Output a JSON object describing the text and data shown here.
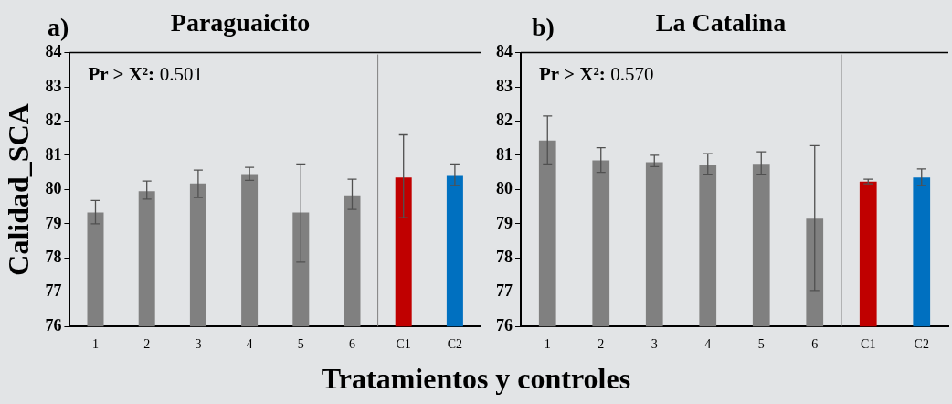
{
  "chart_data": [
    {
      "type": "bar",
      "title": "Paraguaicito",
      "ylabel": "Calidad_SCA",
      "xlabel": "Tratamientos y controles",
      "annotations": [
        "a)",
        "Pr > X²: 0.501"
      ],
      "categories": [
        "1",
        "2",
        "3",
        "4",
        "5",
        "6",
        "C1",
        "C2"
      ],
      "values": [
        79.33,
        79.95,
        80.18,
        80.45,
        79.33,
        79.83,
        80.35,
        80.4
      ],
      "colors": [
        "#808080",
        "#808080",
        "#808080",
        "#808080",
        "#808080",
        "#808080",
        "#c00000",
        "#0070c0"
      ],
      "errors": [
        [
          79.0,
          79.68
        ],
        [
          79.72,
          80.25
        ],
        [
          79.77,
          80.57
        ],
        [
          80.27,
          80.65
        ],
        [
          77.88,
          80.75
        ],
        [
          79.42,
          80.3
        ],
        [
          79.18,
          81.6
        ],
        [
          80.12,
          80.75
        ]
      ],
      "ylim": [
        76,
        84
      ],
      "yticks": [
        76,
        77,
        78,
        79,
        80,
        81,
        82,
        83,
        84
      ],
      "grid": false,
      "legend": false
    },
    {
      "type": "bar",
      "title": "La Catalina",
      "annotations": [
        "b)",
        "Pr > X²: 0.570"
      ],
      "categories": [
        "1",
        "2",
        "3",
        "4",
        "5",
        "6",
        "C1",
        "C2"
      ],
      "values": [
        81.43,
        80.85,
        80.8,
        80.72,
        80.75,
        79.15,
        80.23,
        80.35
      ],
      "colors": [
        "#808080",
        "#808080",
        "#808080",
        "#808080",
        "#808080",
        "#808080",
        "#c00000",
        "#0070c0"
      ],
      "errors": [
        [
          80.75,
          82.15
        ],
        [
          80.5,
          81.22
        ],
        [
          80.67,
          81.0
        ],
        [
          80.45,
          81.05
        ],
        [
          80.45,
          81.1
        ],
        [
          77.05,
          81.28
        ],
        [
          80.17,
          80.3
        ],
        [
          80.12,
          80.6
        ]
      ],
      "ylim": [
        76,
        84
      ],
      "yticks": [
        76,
        77,
        78,
        79,
        80,
        81,
        82,
        83,
        84
      ],
      "grid": false,
      "legend": false
    }
  ]
}
